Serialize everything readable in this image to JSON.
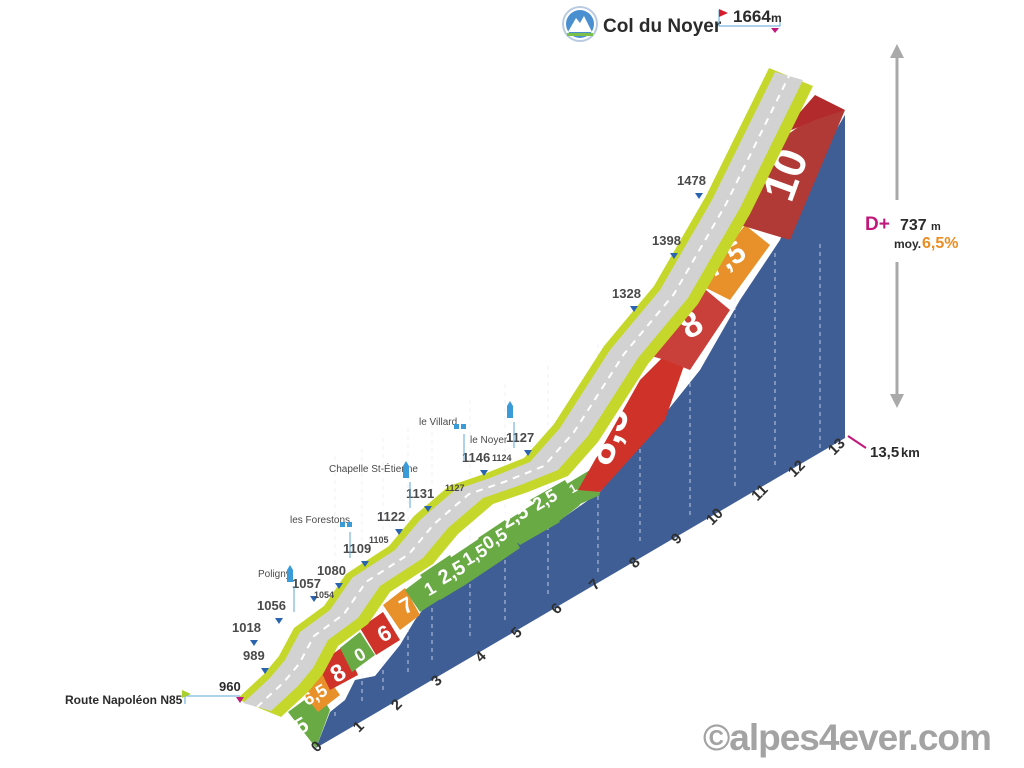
{
  "title": {
    "pass_name": "Col du Noyer",
    "summit_altitude": "1664",
    "summit_unit": "m",
    "logo_icon": "mountain-badge-icon"
  },
  "start": {
    "label": "Route Napoléon N85",
    "altitude": "960"
  },
  "stats": {
    "dplus_label": "D+",
    "dplus_value": "737",
    "dplus_unit": "m",
    "avg_label": "moy.",
    "avg_value": "6,5%"
  },
  "distance": {
    "total": "13,5",
    "unit": "km"
  },
  "altitudes": [
    "989",
    "1018",
    "1056",
    "1057",
    "1080",
    "1109",
    "1122",
    "1131",
    "1146",
    "1127",
    "1328",
    "1398",
    "1478"
  ],
  "small_altitudes": [
    "1054",
    "1105",
    "1127",
    "1124"
  ],
  "places": [
    {
      "name": "Poligny",
      "icon": "church-icon"
    },
    {
      "name": "les Forestons",
      "icon": "hamlet-icon"
    },
    {
      "name": "Chapelle St-Étienne",
      "icon": "church-icon"
    },
    {
      "name": "le Villard",
      "icon": "hamlet-icon"
    },
    {
      "name": "le Noyer",
      "icon": "church-icon"
    }
  ],
  "km_ticks": [
    "0",
    "1",
    "2",
    "3",
    "4",
    "5",
    "6",
    "7",
    "8",
    "9",
    "10",
    "11",
    "12",
    "13"
  ],
  "copyright": "©alpes4ever.com",
  "colors": {
    "green": "#6aaa45",
    "orange": "#e8902a",
    "red": "#cf3229",
    "darkred": "#b22a2c",
    "side": "#3f5e95",
    "road": "#d2d2d2",
    "shoulder": "#c6d72b",
    "accent": "#c2187b",
    "avg": "#ea8d23",
    "marker": "#2a63b0"
  },
  "chart_data": {
    "type": "area",
    "xlabel": "km",
    "ylabel": "m",
    "title": "Col du Noyer",
    "x": [
      0,
      1,
      2,
      3,
      4,
      5,
      6,
      7,
      8,
      9,
      10,
      11,
      12,
      13,
      13.5
    ],
    "y": [
      960,
      1010,
      1075,
      1080,
      1106,
      1115,
      1140,
      1159,
      1246,
      1328,
      1398,
      1478,
      1578,
      1632,
      1664
    ],
    "segment_grades": [
      5,
      6.5,
      8,
      0,
      6,
      7,
      1,
      2.5,
      1.5,
      0.5,
      2.5,
      2.5,
      1,
      8.5,
      8,
      7.5,
      10
    ],
    "grade_display": [
      "5",
      "6,5",
      "8",
      "0",
      "6",
      "7",
      "1",
      "2,5",
      "1,5",
      "0,5",
      "2,5",
      "2,5",
      "1",
      "8,5",
      "8",
      "7,5",
      "10"
    ]
  }
}
